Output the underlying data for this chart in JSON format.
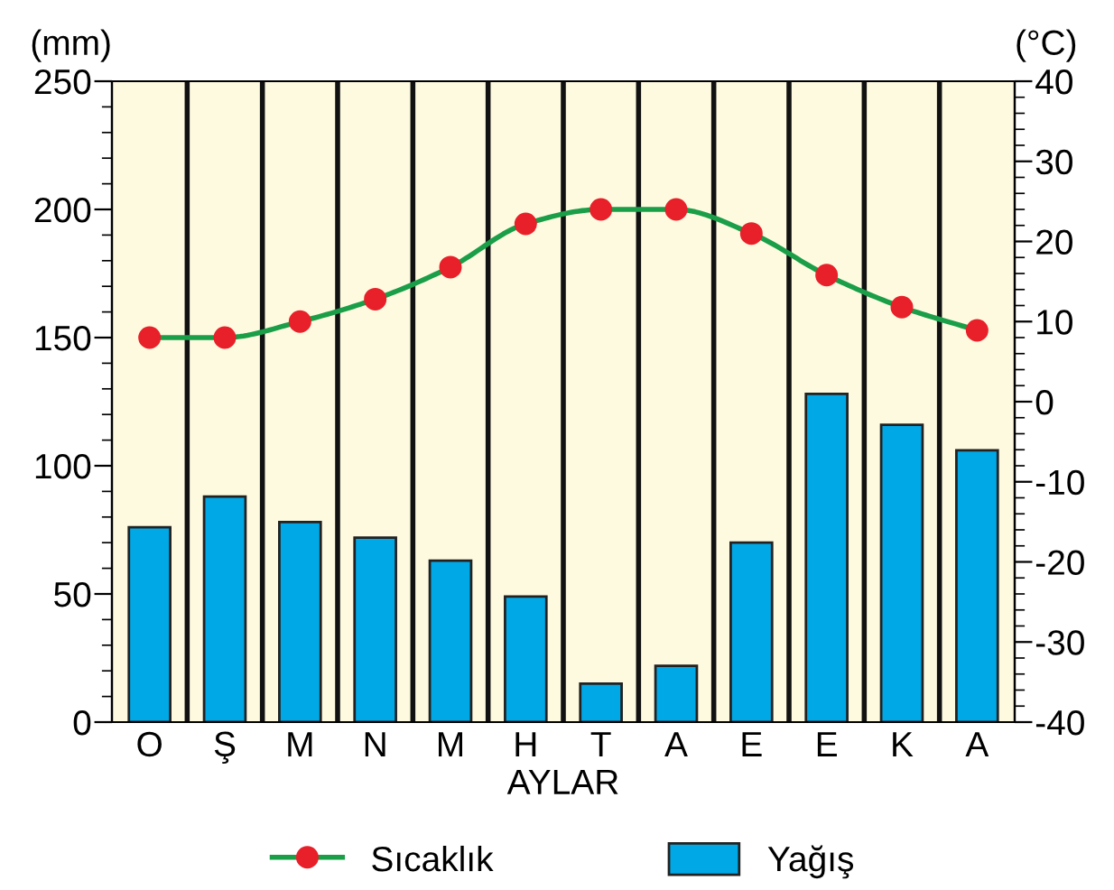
{
  "chart_data": {
    "type": "bar",
    "xlabel": "AYLAR",
    "ylabel": "(mm)",
    "y2label": "(°C)",
    "categories": [
      "O",
      "Ş",
      "M",
      "N",
      "M",
      "H",
      "T",
      "A",
      "E",
      "E",
      "K",
      "A"
    ],
    "series": [
      {
        "name": "Sıcaklık",
        "type": "line",
        "axis": "y2",
        "color": "#1a9e48",
        "marker": "circle",
        "colors": [
          "#e8202a",
          "#e8202a",
          "#e8202a",
          "#e8202a",
          "#e8202a",
          "#e8202a",
          "#e8202a",
          "#e8202a",
          "#e8202a",
          "#e8202a",
          "#e8202a",
          "#e8202a"
        ],
        "values": [
          8,
          8,
          10,
          12.8,
          16.8,
          22.2,
          24,
          24,
          21,
          15.8,
          11.8,
          8.9
        ]
      },
      {
        "name": "Yağış",
        "color": "#00a8e6",
        "values": [
          76,
          88,
          78,
          72,
          63,
          49,
          15,
          22,
          70,
          128,
          116,
          106
        ]
      }
    ],
    "ylim": [
      0,
      250
    ],
    "yticks": [
      0,
      50,
      100,
      150,
      200,
      250
    ],
    "y2lim": [
      -40,
      40
    ],
    "y2ticks": [
      -40,
      -30,
      -20,
      -10,
      0,
      10,
      20,
      30,
      40
    ],
    "grid": "x",
    "legend": "bottom"
  }
}
